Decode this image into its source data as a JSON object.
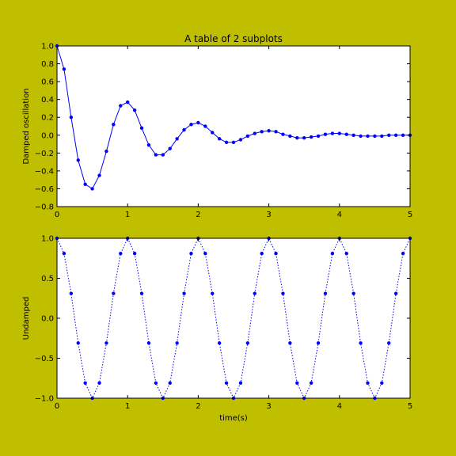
{
  "figure": {
    "background": "#bfbf00",
    "title": "A table of 2 subplots"
  },
  "chart_data": [
    {
      "type": "line",
      "title": "A table of 2 subplots",
      "xlabel": "",
      "ylabel": "Damped oscillation",
      "xlim": [
        0,
        5
      ],
      "ylim": [
        -0.8,
        1.0
      ],
      "xticks": [
        0,
        1,
        2,
        3,
        4,
        5
      ],
      "xtick_labels": [
        "0",
        "1",
        "2",
        "3",
        "4",
        "5"
      ],
      "yticks": [
        -0.8,
        -0.6,
        -0.4,
        -0.2,
        0.0,
        0.2,
        0.4,
        0.6,
        0.8,
        1.0
      ],
      "ytick_labels": [
        "−0.8",
        "−0.6",
        "−0.4",
        "−0.2",
        "0.0",
        "0.2",
        "0.4",
        "0.6",
        "0.8",
        "1.0"
      ],
      "grid": false,
      "marker": "o",
      "line_style": "solid",
      "series": [
        {
          "color": "#0000ff",
          "x": [
            0.0,
            0.1,
            0.2,
            0.3,
            0.4,
            0.5,
            0.6,
            0.7,
            0.8,
            0.9,
            1.0,
            1.1,
            1.2,
            1.3,
            1.4,
            1.5,
            1.6,
            1.7,
            1.8,
            1.9,
            2.0,
            2.1,
            2.2,
            2.3,
            2.4,
            2.5,
            2.6,
            2.7,
            2.8,
            2.9,
            3.0,
            3.1,
            3.2,
            3.3,
            3.4,
            3.5,
            3.6,
            3.7,
            3.8,
            3.9,
            4.0,
            4.1,
            4.2,
            4.3,
            4.4,
            4.5,
            4.6,
            4.7,
            4.8,
            4.9,
            5.0
          ],
          "y": [
            1.0,
            0.74,
            0.2,
            -0.28,
            -0.55,
            -0.6,
            -0.45,
            -0.18,
            0.12,
            0.33,
            0.37,
            0.28,
            0.08,
            -0.11,
            -0.22,
            -0.22,
            -0.15,
            -0.04,
            0.06,
            0.12,
            0.14,
            0.1,
            0.03,
            -0.04,
            -0.08,
            -0.08,
            -0.05,
            -0.01,
            0.02,
            0.04,
            0.05,
            0.04,
            0.01,
            -0.01,
            -0.03,
            -0.03,
            -0.02,
            -0.01,
            0.01,
            0.02,
            0.02,
            0.01,
            0.0,
            -0.01,
            -0.01,
            -0.01,
            -0.01,
            0.0,
            0.0,
            0.0,
            0.0
          ]
        }
      ]
    },
    {
      "type": "line",
      "title": "",
      "xlabel": "time(s)",
      "ylabel": "Undamped",
      "xlim": [
        0,
        5
      ],
      "ylim": [
        -1.0,
        1.0
      ],
      "xticks": [
        0,
        1,
        2,
        3,
        4,
        5
      ],
      "xtick_labels": [
        "0",
        "1",
        "2",
        "3",
        "4",
        "5"
      ],
      "yticks": [
        -1.0,
        -0.5,
        0.0,
        0.5,
        1.0
      ],
      "ytick_labels": [
        "−1.0",
        "−0.5",
        "0.0",
        "0.5",
        "1.0"
      ],
      "grid": false,
      "marker": "o",
      "line_style": "dotted",
      "series": [
        {
          "color": "#0000ff",
          "x": [
            0.0,
            0.1,
            0.2,
            0.3,
            0.4,
            0.5,
            0.6,
            0.7,
            0.8,
            0.9,
            1.0,
            1.1,
            1.2,
            1.3,
            1.4,
            1.5,
            1.6,
            1.7,
            1.8,
            1.9,
            2.0,
            2.1,
            2.2,
            2.3,
            2.4,
            2.5,
            2.6,
            2.7,
            2.8,
            2.9,
            3.0,
            3.1,
            3.2,
            3.3,
            3.4,
            3.5,
            3.6,
            3.7,
            3.8,
            3.9,
            4.0,
            4.1,
            4.2,
            4.3,
            4.4,
            4.5,
            4.6,
            4.7,
            4.8,
            4.9,
            5.0
          ],
          "y": [
            1.0,
            0.81,
            0.31,
            -0.31,
            -0.81,
            -1.0,
            -0.81,
            -0.31,
            0.31,
            0.81,
            1.0,
            0.81,
            0.31,
            -0.31,
            -0.81,
            -1.0,
            -0.81,
            -0.31,
            0.31,
            0.81,
            1.0,
            0.81,
            0.31,
            -0.31,
            -0.81,
            -1.0,
            -0.81,
            -0.31,
            0.31,
            0.81,
            1.0,
            0.81,
            0.31,
            -0.31,
            -0.81,
            -1.0,
            -0.81,
            -0.31,
            0.31,
            0.81,
            1.0,
            0.81,
            0.31,
            -0.31,
            -0.81,
            -1.0,
            -0.81,
            -0.31,
            0.31,
            0.81,
            1.0
          ]
        }
      ]
    }
  ]
}
